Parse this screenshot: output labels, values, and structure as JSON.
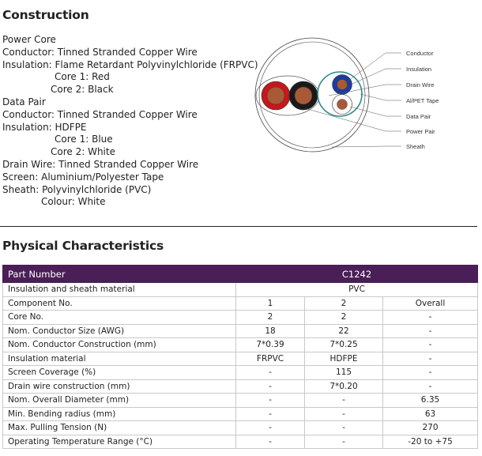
{
  "construction": {
    "title": "Construction",
    "lines": [
      "Power Core",
      "Conductor: Tinned Stranded Copper Wire",
      "Insulation: Flame Retardant Polyvinylchloride (FRPVC)",
      "Core 1: Red",
      "Core 2: Black",
      "Data Pair",
      "Conductor: Tinned Stranded Copper Wire",
      "Insulation: HDFPE",
      "Core 1: Blue",
      "Core 2: White",
      "Drain Wire: Tinned Stranded Copper Wire",
      "Screen: Aluminium/Polyester Tape",
      "Sheath: Polyvinylchloride (PVC)",
      "Colour: White"
    ],
    "diagram_labels": [
      "Conductor",
      "Insulation",
      "Drain Wire",
      "Al/PET Tape",
      "Data Pair",
      "Power Pair",
      "Sheath"
    ],
    "colors": {
      "red": "#c8161d",
      "black": "#1a1a1a",
      "blue": "#1d3c9e",
      "copper": "#a85a36",
      "screen": "#2f8a8a"
    }
  },
  "physical": {
    "title": "Physical Characteristics",
    "header": {
      "label": "Part Number",
      "value": "C1242"
    },
    "rows": [
      {
        "label": "Insulation and sheath material",
        "span": "PVC"
      },
      {
        "label": "Component No.",
        "values": [
          "1",
          "2",
          "Overall"
        ]
      },
      {
        "label": "Core No.",
        "values": [
          "2",
          "2",
          "-"
        ]
      },
      {
        "label": "Nom. Conductor Size (AWG)",
        "values": [
          "18",
          "22",
          "-"
        ]
      },
      {
        "label": "Nom. Conductor Construction (mm)",
        "values": [
          "7*0.39",
          "7*0.25",
          "-"
        ]
      },
      {
        "label": "Insulation material",
        "values": [
          "FRPVC",
          "HDFPE",
          "-"
        ]
      },
      {
        "label": "Screen Coverage (%)",
        "values": [
          "-",
          "115",
          "-"
        ]
      },
      {
        "label": "Drain wire construction (mm)",
        "values": [
          "-",
          "7*0.20",
          "-"
        ]
      },
      {
        "label": "Nom. Overall Diameter (mm)",
        "values": [
          "-",
          "-",
          "6.35"
        ]
      },
      {
        "label": "Min. Bending radius (mm)",
        "values": [
          "-",
          "-",
          "63"
        ]
      },
      {
        "label": "Max. Pulling Tension (N)",
        "values": [
          "-",
          "-",
          "270"
        ]
      },
      {
        "label": "Operating Temperature Range (°C)",
        "values": [
          "-",
          "-",
          "-20 to +75"
        ]
      }
    ],
    "header_color": "#4a1f57"
  }
}
